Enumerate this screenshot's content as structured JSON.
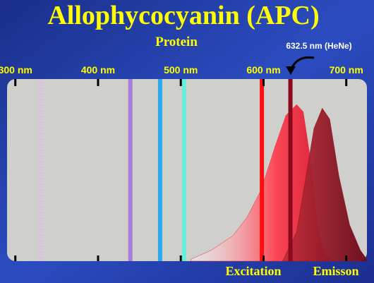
{
  "chart_data": {
    "type": "spectrum",
    "title": "Allophycocyanin (APC)",
    "subtitle": "Protein",
    "annotation": "632.5 nm (HeNe)",
    "xlim": [
      290,
      725
    ],
    "ylim": [
      0,
      100
    ],
    "xticks": [
      {
        "value": 300,
        "label": "300 nm"
      },
      {
        "value": 400,
        "label": "400 nm"
      },
      {
        "value": 500,
        "label": "500 nm"
      },
      {
        "value": 600,
        "label": "600 nm"
      },
      {
        "value": 700,
        "label": "700 nm"
      }
    ],
    "lasers": [
      {
        "value": 331,
        "color": "#e6b8e6"
      },
      {
        "value": 439,
        "color": "#a77ee0"
      },
      {
        "value": 475,
        "color": "#2aa8f0"
      },
      {
        "value": 504,
        "color": "#66eedd"
      },
      {
        "value": 598,
        "color": "#ff1010"
      },
      {
        "value": 632.5,
        "color": "#8b0a1e"
      }
    ],
    "series": [
      {
        "name": "Excitation",
        "color": "#e8203a",
        "x": [
          512,
          537,
          563,
          580,
          597,
          614,
          627,
          640,
          648,
          657,
          665,
          674,
          683
        ],
        "values": [
          1,
          6,
          14,
          24,
          39,
          63,
          80,
          86,
          82,
          55,
          20,
          4,
          0
        ]
      },
      {
        "name": "Emisson",
        "color": "#8e1020",
        "x": [
          623,
          640,
          653,
          661,
          671,
          680,
          691,
          704,
          717,
          725
        ],
        "values": [
          0,
          16,
          51,
          73,
          84,
          78,
          47,
          20,
          6,
          1
        ]
      }
    ]
  }
}
